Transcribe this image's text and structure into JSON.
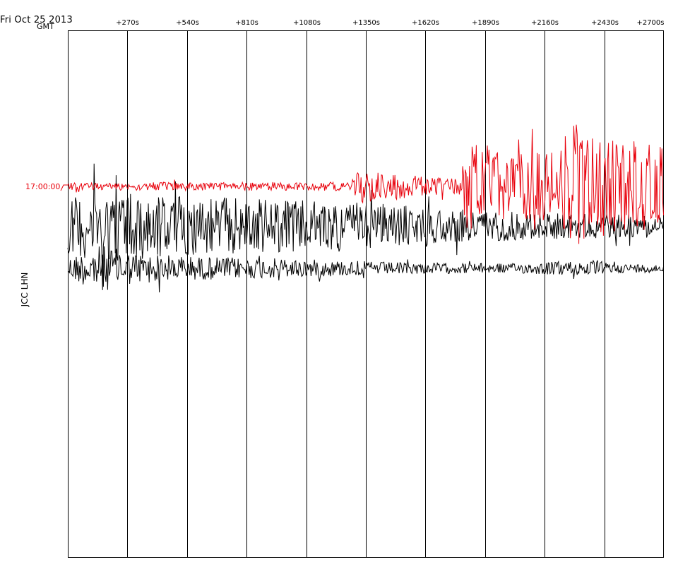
{
  "header": {
    "date": "Fri Oct 25 2013",
    "timezone": "GMT"
  },
  "station": "JCC LHN",
  "colors": {
    "current_trace": "#e8000b",
    "past_trace": "#000000",
    "grid": "#000000"
  },
  "chart_data": {
    "type": "line",
    "title": "",
    "xlabel": "",
    "ylabel": "JCC LHN",
    "x_tick_labels": [
      "+270s",
      "+540s",
      "+810s",
      "+1080s",
      "+1350s",
      "+1620s",
      "+1890s",
      "+2160s",
      "+2430s",
      "+2700s"
    ],
    "x_ticks": [
      270,
      540,
      810,
      1080,
      1350,
      1620,
      1890,
      2160,
      2430,
      2700
    ],
    "xlim": [
      0,
      2700
    ],
    "grid": true,
    "trace_start_label": "17:00:00",
    "series": [
      {
        "name": "17:00:00",
        "color": "#e8000b",
        "envelope": [
          [
            0,
            5
          ],
          [
            400,
            6
          ],
          [
            1280,
            6
          ],
          [
            1320,
            25
          ],
          [
            1500,
            18
          ],
          [
            1700,
            12
          ],
          [
            1780,
            12
          ],
          [
            1800,
            70
          ],
          [
            1900,
            60
          ],
          [
            2000,
            45
          ],
          [
            2200,
            50
          ],
          [
            2300,
            90
          ],
          [
            2400,
            65
          ],
          [
            2500,
            70
          ],
          [
            2700,
            55
          ]
        ]
      },
      {
        "name": "",
        "color": "#000000",
        "envelope": [
          [
            0,
            70
          ],
          [
            150,
            95
          ],
          [
            300,
            90
          ],
          [
            500,
            80
          ],
          [
            700,
            75
          ],
          [
            900,
            70
          ],
          [
            1100,
            65
          ],
          [
            1300,
            60
          ],
          [
            1500,
            55
          ],
          [
            1700,
            45
          ],
          [
            1900,
            40
          ],
          [
            2200,
            35
          ],
          [
            2500,
            30
          ],
          [
            2700,
            30
          ]
        ]
      },
      {
        "name": "",
        "color": "#000000",
        "envelope": [
          [
            0,
            30
          ],
          [
            150,
            60
          ],
          [
            300,
            40
          ],
          [
            600,
            30
          ],
          [
            1000,
            25
          ],
          [
            1500,
            15
          ],
          [
            2000,
            12
          ],
          [
            2300,
            20
          ],
          [
            2500,
            12
          ],
          [
            2700,
            10
          ]
        ]
      }
    ]
  }
}
